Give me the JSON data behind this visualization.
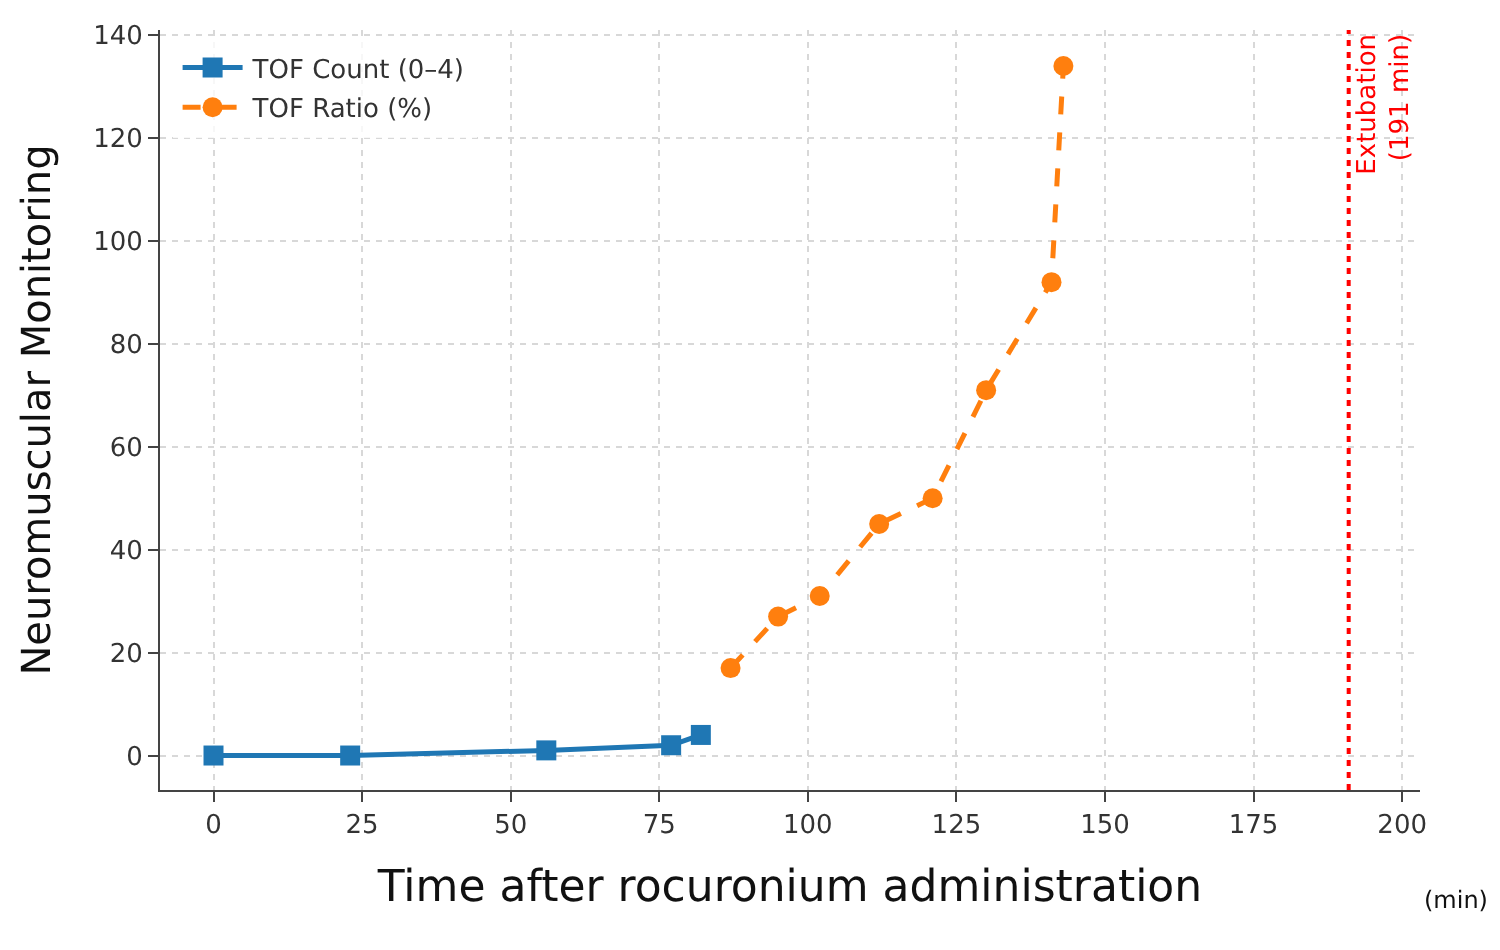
{
  "chart_data": {
    "type": "line",
    "xlabel": "Time after rocuronium administration",
    "ylabel": "Neuromuscular Monitoring",
    "series": [
      {
        "name": "TOF Count (0–4)",
        "color": "#1f77b4",
        "marker": "square",
        "line_style": "solid",
        "x": [
          0,
          23,
          56,
          77,
          82
        ],
        "values": [
          0,
          0,
          1,
          2,
          4
        ]
      },
      {
        "name": "TOF Ratio (%)",
        "color": "#ff7f0e",
        "marker": "circle",
        "line_style": "dashed",
        "x": [
          87,
          95,
          102,
          112,
          121,
          130,
          141,
          143
        ],
        "values": [
          17,
          27,
          31,
          45,
          50,
          71,
          92,
          134
        ]
      }
    ],
    "xlim": [
      -9,
      203
    ],
    "xticks": [
      0,
      25,
      50,
      75,
      100,
      125,
      150,
      175,
      200
    ],
    "ylim": [
      -6.7,
      141
    ],
    "yticks": [
      0,
      20,
      40,
      60,
      80,
      100,
      120,
      140
    ],
    "ref_lines": [
      {
        "axis": "x",
        "value": 191,
        "label": "Extubation\n(191 min)",
        "color": "#ff0000",
        "line_style": "dotted"
      }
    ],
    "annotations": [
      "(min)"
    ],
    "grid": true,
    "legend": "top left"
  }
}
